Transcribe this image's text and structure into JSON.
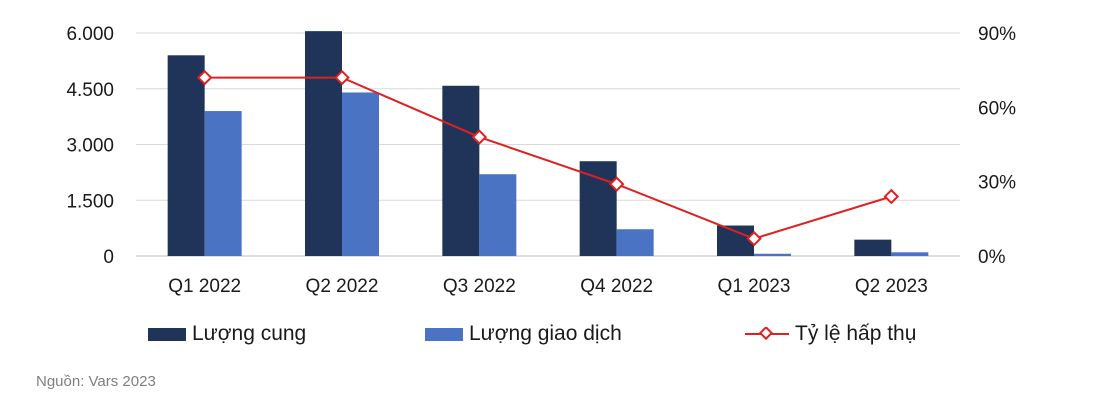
{
  "chart_data": {
    "type": "bar",
    "categories": [
      "Q1 2022",
      "Q2 2022",
      "Q3 2022",
      "Q4 2022",
      "Q1 2023",
      "Q2 2023"
    ],
    "series": [
      {
        "name": "Lượng cung",
        "kind": "bar",
        "axis": "left",
        "color": "#1f3458",
        "values": [
          5400,
          6050,
          4580,
          2550,
          820,
          440
        ]
      },
      {
        "name": "Lượng giao dịch",
        "kind": "bar",
        "axis": "left",
        "color": "#4a74c3",
        "values": [
          3900,
          4400,
          2200,
          720,
          60,
          100
        ]
      },
      {
        "name": "Tỷ lệ hấp thụ",
        "kind": "line",
        "axis": "right",
        "color": "#e02020",
        "values": [
          72,
          72,
          48,
          29,
          7,
          24
        ]
      }
    ],
    "y_left": {
      "ticks": [
        "0",
        "1.500",
        "3.000",
        "4.500",
        "6.000"
      ],
      "tick_values": [
        0,
        1500,
        3000,
        4500,
        6000
      ],
      "ylim": [
        0,
        6000
      ]
    },
    "y_right": {
      "ticks": [
        "0%",
        "30%",
        "60%",
        "90%"
      ],
      "tick_values": [
        0,
        30,
        60,
        90
      ],
      "ylim": [
        0,
        90
      ]
    },
    "grid": true,
    "legend_placement": "bottom"
  },
  "legend": {
    "supply": "Lượng cung",
    "transactions": "Lượng giao dịch",
    "absorption": "Tỷ lệ hấp thụ"
  },
  "source": "Nguồn: Vars 2023"
}
